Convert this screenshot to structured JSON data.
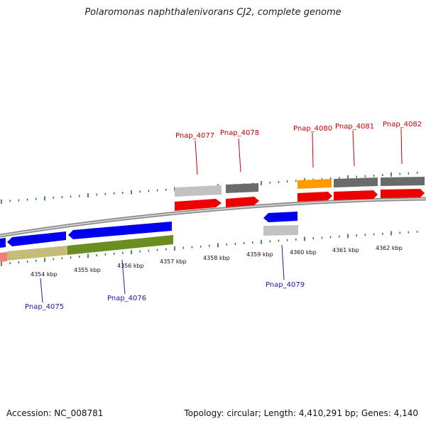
{
  "title": "Polaromonas naphthalenivorans CJ2, complete genome",
  "footer": {
    "accession": "Accession: NC_008781",
    "info": "Topology: circular; Length: 4,410,291 bp; Genes: 4,140"
  },
  "colors": {
    "forward_label": "#cc0000",
    "reverse_label": "#1a1aa8",
    "forward_cds": "#ee0000",
    "reverse_cds": "#0000ee",
    "grey_light": "#c0c0c0",
    "grey_dark": "#666666",
    "orange": "#ff9900",
    "olive_light": "#c8c080",
    "olive_dark": "#6b8e23",
    "pink": "#f08080",
    "tick": "#1a7a1a",
    "backbone": "#9a9a9a"
  },
  "tick_labels": [
    "4354 kbp",
    "4355 kbp",
    "4356 kbp",
    "4357 kbp",
    "4358 kbp",
    "4359 kbp",
    "4360 kbp",
    "4361 kbp",
    "4362 kbp"
  ],
  "gene_labels": {
    "forward": [
      "Pnap_4077",
      "Pnap_4078",
      "Pnap_4080",
      "Pnap_4081",
      "Pnap_4082"
    ],
    "reverse": [
      "Pnap_4075",
      "Pnap_4076",
      "Pnap_4079"
    ]
  }
}
